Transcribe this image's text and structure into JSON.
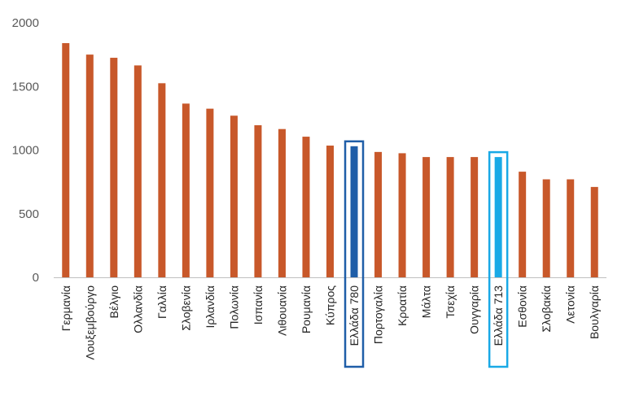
{
  "chart_data": {
    "type": "bar",
    "title": "",
    "xlabel": "",
    "ylabel": "",
    "ylim": [
      0,
      2000
    ],
    "yticks": [
      0,
      500,
      1000,
      1500,
      2000
    ],
    "grid": false,
    "legend": "none",
    "categories": [
      "Γερμανία",
      "Λουξεμβούργο",
      "Βέλγιο",
      "Ολλανδία",
      "Γαλλία",
      "Σλοβενία",
      "Ιρλανδία",
      "Πολωνία",
      "Ισπανία",
      "Λιθουανία",
      "Ρουμανία",
      "Κύπρος",
      "Ελλάδα 780",
      "Πορτογαλία",
      "Κροατία",
      "Μάλτα",
      "Τσεχία",
      "Ουγγαρία",
      "Ελλάδα 713",
      "Εσθονία",
      "Σλοβακία",
      "Λετονία",
      "Βουλγαρία"
    ],
    "values": [
      1840,
      1750,
      1725,
      1665,
      1525,
      1365,
      1325,
      1270,
      1195,
      1165,
      1105,
      1035,
      1030,
      985,
      975,
      945,
      945,
      945,
      945,
      830,
      770,
      770,
      710
    ],
    "highlighted": [
      {
        "category": "Ελλάδα 780",
        "bar_color": "#1f5ea8",
        "box_color": "#1f5ea8"
      },
      {
        "category": "Ελλάδα 713",
        "bar_color": "#19a9e6",
        "box_color": "#19a9e6"
      }
    ],
    "colors": {
      "bar": "#c8582a",
      "axis": "#bfbfbf"
    }
  }
}
